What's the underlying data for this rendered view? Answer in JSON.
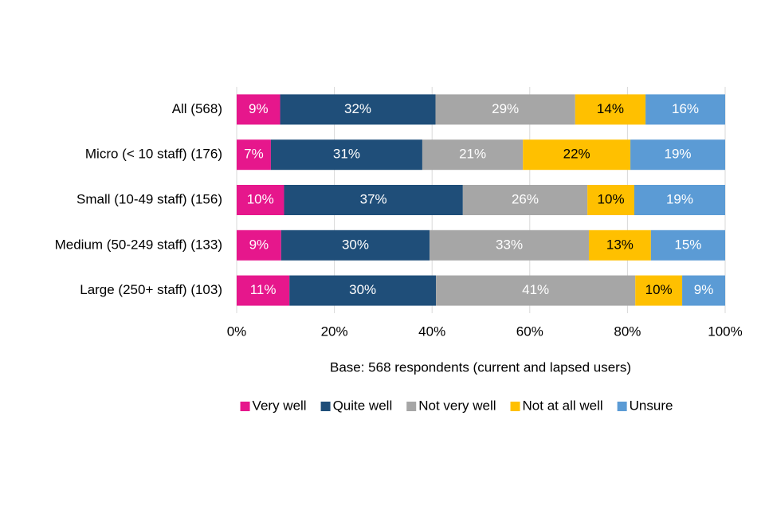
{
  "chart_data": {
    "type": "stacked-bar-horizontal",
    "categories": [
      "All (568)",
      "Micro (< 10 staff) (176)",
      "Small (10-49 staff) (156)",
      "Medium (50-249 staff) (133)",
      "Large (250+ staff) (103)"
    ],
    "series": [
      {
        "name": "Very well",
        "color": "#e6178c",
        "values": [
          8.9,
          7.0,
          9.7,
          9.1,
          10.8
        ],
        "value_labels": [
          "9%",
          "7%",
          "10%",
          "9%",
          "11%"
        ]
      },
      {
        "name": "Quite well",
        "color": "#1f4e79",
        "values": [
          31.8,
          31.0,
          36.6,
          30.4,
          30.0
        ],
        "value_labels": [
          "32%",
          "31%",
          "37%",
          "30%",
          "30%"
        ]
      },
      {
        "name": "Not very well",
        "color": "#a6a6a6",
        "values": [
          28.6,
          20.6,
          25.5,
          32.6,
          40.8
        ],
        "value_labels": [
          "29%",
          "21%",
          "26%",
          "33%",
          "41%"
        ]
      },
      {
        "name": "Not at all well",
        "color": "#ffc000",
        "values": [
          14.4,
          22.0,
          9.6,
          12.7,
          9.6
        ],
        "value_labels": [
          "14%",
          "22%",
          "10%",
          "13%",
          "10%"
        ]
      },
      {
        "name": "Unsure",
        "color": "#5b9bd5",
        "values": [
          16.3,
          19.4,
          18.6,
          15.2,
          8.8
        ],
        "value_labels": [
          "16%",
          "19%",
          "19%",
          "15%",
          "9%"
        ]
      }
    ],
    "xlim": [
      0,
      100
    ],
    "xticks": [
      {
        "value": 0,
        "label": "0%"
      },
      {
        "value": 20,
        "label": "20%"
      },
      {
        "value": 40,
        "label": "40%"
      },
      {
        "value": 60,
        "label": "60%"
      },
      {
        "value": 80,
        "label": "80%"
      },
      {
        "value": 100,
        "label": "100%"
      }
    ],
    "x_label": "Base: 568 respondents (current and lapsed users)",
    "grid": true,
    "legend": "bottom"
  }
}
